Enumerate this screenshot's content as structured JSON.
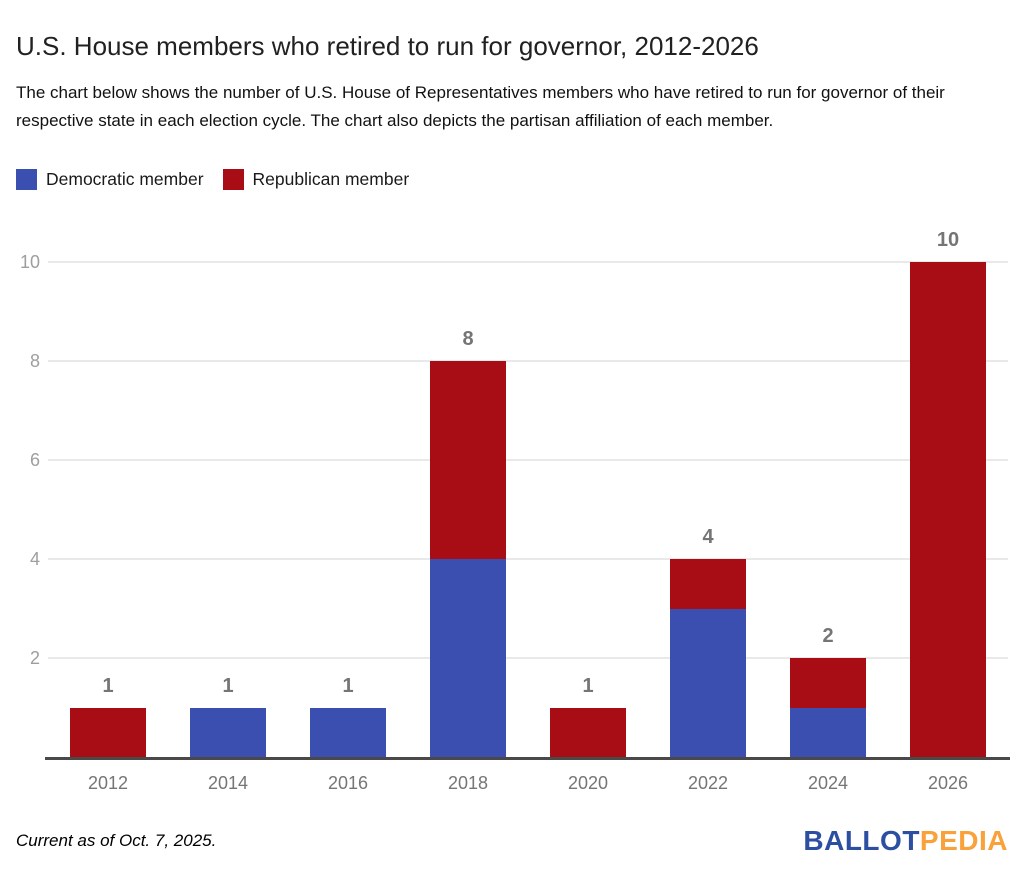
{
  "header": {
    "title": "U.S. House members who retired to run for governor, 2012-2026",
    "subtitle": "The chart below shows the number of U.S. House of Representatives members who have retired to run for governor of their respective state in each election cycle. The chart also depicts the partisan affiliation of each member."
  },
  "legend": {
    "items": [
      {
        "label": "Democratic member",
        "color": "#3A4FB0"
      },
      {
        "label": "Republican member",
        "color": "#A80C14"
      }
    ]
  },
  "chart_data": {
    "type": "bar",
    "stacked": true,
    "title": "U.S. House members who retired to run for governor, 2012-2026",
    "categories": [
      "2012",
      "2014",
      "2016",
      "2018",
      "2020",
      "2022",
      "2024",
      "2026"
    ],
    "series": [
      {
        "name": "Democratic member",
        "color": "#3A4FB0",
        "values": [
          0,
          1,
          1,
          4,
          0,
          3,
          1,
          0
        ]
      },
      {
        "name": "Republican member",
        "color": "#A80C14",
        "values": [
          1,
          0,
          0,
          4,
          1,
          1,
          1,
          10
        ]
      }
    ],
    "totals": [
      1,
      1,
      1,
      8,
      1,
      4,
      2,
      10
    ],
    "xlabel": "",
    "ylabel": "",
    "ylim": [
      0,
      10
    ],
    "yticks": [
      2,
      4,
      6,
      8,
      10
    ],
    "grid": true,
    "legend_position": "top",
    "data_label_color": "#757575",
    "axis_label_color": "#9e9e9e"
  },
  "footer": {
    "note": "Current as of Oct. 7, 2025.",
    "logo": {
      "part1": "BALLOT",
      "part2": "PEDIA",
      "color1": "#2D4FA1",
      "color2": "#F9A13A"
    }
  }
}
